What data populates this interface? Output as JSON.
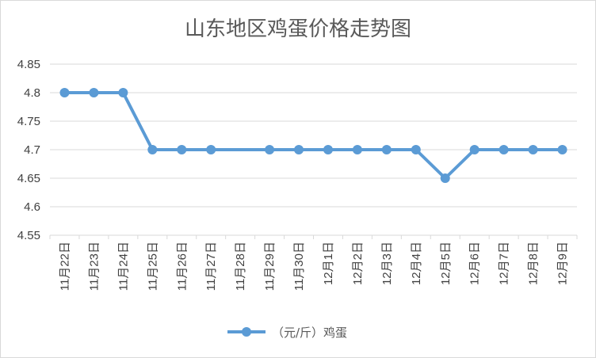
{
  "chart_data": {
    "type": "line",
    "title": "山东地区鸡蛋价格走势图",
    "categories": [
      "11月22日",
      "11月23日",
      "11月24日",
      "11月25日",
      "11月26日",
      "11月27日",
      "11月28日",
      "11月29日",
      "11月30日",
      "12月1日",
      "12月2日",
      "12月3日",
      "12月4日",
      "12月5日",
      "12月6日",
      "12月7日",
      "12月8日",
      "12月9日"
    ],
    "series": [
      {
        "name": "（元/斤）鸡蛋",
        "values": [
          4.8,
          4.8,
          4.8,
          4.7,
          4.7,
          4.7,
          null,
          4.7,
          4.7,
          4.7,
          4.7,
          4.7,
          4.7,
          4.65,
          4.7,
          4.7,
          4.7,
          4.7
        ],
        "color": "#5b9bd5"
      }
    ],
    "ylim": [
      4.55,
      4.85
    ],
    "yticks": [
      "4.55",
      "4.6",
      "4.65",
      "4.7",
      "4.75",
      "4.8",
      "4.85"
    ],
    "grid": true,
    "legend_position": "bottom"
  }
}
